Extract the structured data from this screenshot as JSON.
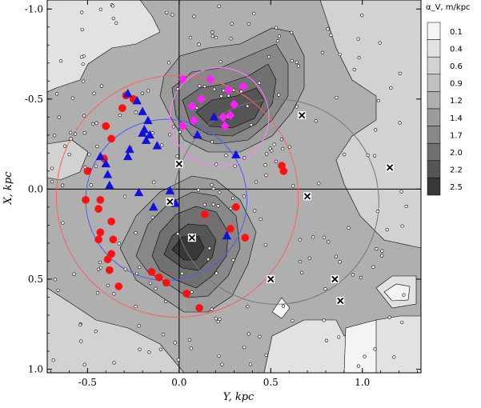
{
  "chart_data": {
    "type": "contour",
    "xlabel": "Y, kpc",
    "ylabel": "X, kpc",
    "xlim": [
      -0.72,
      1.32
    ],
    "ylim": [
      -1.05,
      1.02
    ],
    "x_ticks": [
      -0.5,
      0.0,
      0.5,
      1.0
    ],
    "x_tick_labels": [
      "-0.5",
      "0.0",
      "0.5",
      "1.0"
    ],
    "y_ticks": [
      -1.0,
      -0.5,
      0.0,
      0.5,
      1.0
    ],
    "y_tick_labels": [
      "-1.0",
      "-0.5",
      "0.0",
      "0.5",
      "1.0"
    ],
    "legend_title": "α_V, m/kpc",
    "legend_levels": [
      "0.1",
      "0.4",
      "0.6",
      "0.9",
      "1.2",
      "1.4",
      "1.7",
      "2.0",
      "2.2",
      "2.5"
    ],
    "legend_colors": [
      "#f4f4f4",
      "#e2e2e2",
      "#d2d2d2",
      "#c0c0c0",
      "#afafaf",
      "#9c9c9c",
      "#888888",
      "#707070",
      "#555555",
      "#383838"
    ],
    "grid_lines": {
      "x": 0.0,
      "y": 0.0
    },
    "series": [
      {
        "marker": "red-circle",
        "points": [
          [
            -0.4,
            -0.35
          ],
          [
            -0.37,
            -0.28
          ],
          [
            -0.31,
            -0.45
          ],
          [
            -0.29,
            -0.52
          ],
          [
            -0.25,
            -0.5
          ],
          [
            -0.41,
            -0.17
          ],
          [
            -0.5,
            -0.1
          ],
          [
            -0.43,
            0.06
          ],
          [
            -0.51,
            0.06
          ],
          [
            -0.37,
            0.18
          ],
          [
            -0.43,
            0.24
          ],
          [
            -0.44,
            0.28
          ],
          [
            -0.36,
            0.28
          ],
          [
            -0.37,
            0.36
          ],
          [
            -0.39,
            0.39
          ],
          [
            -0.38,
            0.45
          ],
          [
            -0.33,
            0.54
          ],
          [
            -0.15,
            0.46
          ],
          [
            -0.11,
            0.49
          ],
          [
            -0.07,
            0.52
          ],
          [
            0.04,
            0.58
          ],
          [
            0.11,
            0.66
          ],
          [
            0.14,
            0.14
          ],
          [
            0.31,
            0.1
          ],
          [
            0.28,
            0.22
          ],
          [
            0.36,
            0.27
          ],
          [
            0.56,
            -0.13
          ],
          [
            0.57,
            -0.1
          ],
          [
            -0.44,
            0.11
          ]
        ]
      },
      {
        "marker": "blue-triangle",
        "points": [
          [
            -0.28,
            -0.53
          ],
          [
            -0.23,
            -0.49
          ],
          [
            -0.2,
            -0.43
          ],
          [
            -0.17,
            -0.38
          ],
          [
            -0.19,
            -0.33
          ],
          [
            -0.2,
            -0.31
          ],
          [
            -0.16,
            -0.3
          ],
          [
            -0.18,
            -0.27
          ],
          [
            -0.12,
            -0.24
          ],
          [
            -0.27,
            -0.22
          ],
          [
            -0.28,
            -0.18
          ],
          [
            -0.43,
            -0.18
          ],
          [
            -0.4,
            -0.14
          ],
          [
            -0.39,
            -0.08
          ],
          [
            -0.38,
            -0.02
          ],
          [
            -0.22,
            0.02
          ],
          [
            0.1,
            -0.3
          ],
          [
            0.31,
            -0.19
          ],
          [
            -0.05,
            0.01
          ],
          [
            0.26,
            0.26
          ],
          [
            0.19,
            -0.4
          ],
          [
            -0.02,
            0.08
          ],
          [
            -0.14,
            0.1
          ]
        ]
      },
      {
        "marker": "magenta-diamond",
        "points": [
          [
            0.02,
            -0.61
          ],
          [
            0.17,
            -0.61
          ],
          [
            0.27,
            -0.55
          ],
          [
            0.3,
            -0.47
          ],
          [
            0.28,
            -0.41
          ],
          [
            0.25,
            -0.35
          ],
          [
            0.24,
            -0.4
          ],
          [
            0.35,
            -0.57
          ],
          [
            0.12,
            -0.5
          ],
          [
            0.07,
            -0.46
          ],
          [
            0.02,
            -0.35
          ],
          [
            0.08,
            -0.38
          ]
        ]
      },
      {
        "marker": "cross",
        "points": [
          [
            0.67,
            -0.41
          ],
          [
            1.15,
            -0.12
          ],
          [
            0.7,
            0.04
          ],
          [
            0.5,
            0.5
          ],
          [
            0.85,
            0.5
          ],
          [
            0.88,
            0.62
          ],
          [
            -0.05,
            0.07
          ],
          [
            0.0,
            -0.14
          ],
          [
            0.07,
            0.27
          ]
        ]
      }
    ],
    "circles": [
      {
        "color": "#ff6060",
        "center": [
          -0.01,
          0.04
        ],
        "radius": 0.66
      },
      {
        "color": "#4b5cff",
        "center": [
          -0.07,
          0.06
        ],
        "radius": 0.44
      },
      {
        "color": "#ff80ff",
        "center": [
          0.22,
          -0.4
        ],
        "radius": 0.27
      },
      {
        "color": "#777777",
        "center": [
          0.53,
          0.07
        ],
        "radius": 0.56
      }
    ]
  }
}
